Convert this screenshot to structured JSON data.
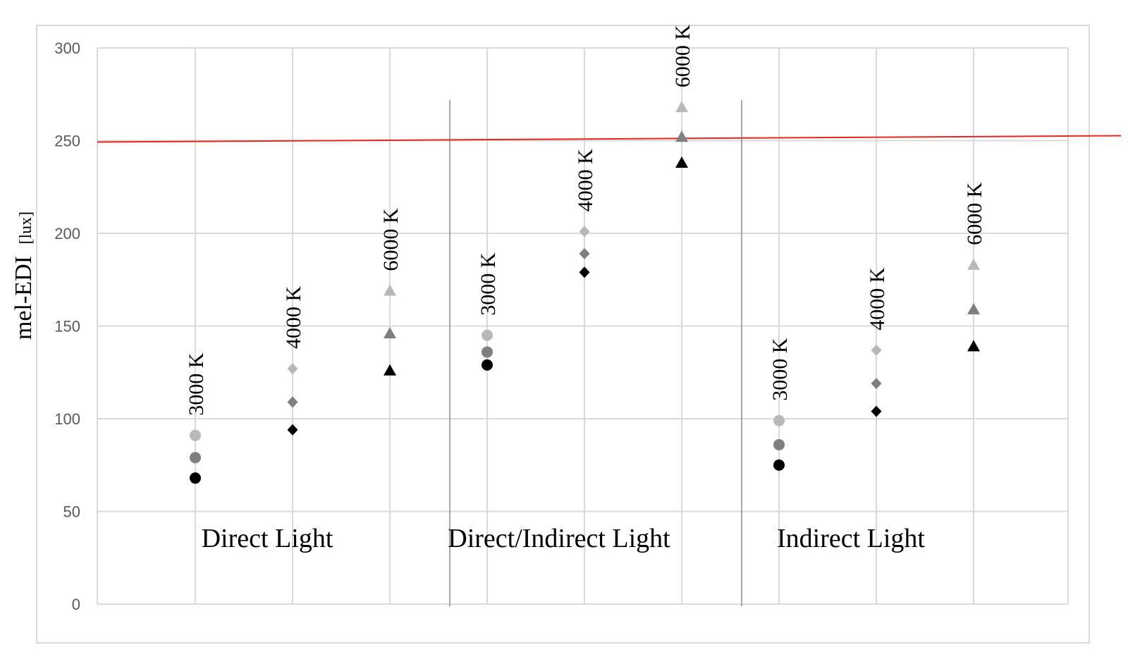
{
  "chart_data": {
    "type": "scatter",
    "ylabel": "mel-EDI",
    "ylabel_unit": "[lux]",
    "ylim": [
      0,
      300
    ],
    "yticks": [
      0,
      50,
      100,
      150,
      200,
      250,
      300
    ],
    "grid": true,
    "groups": [
      {
        "name": "Direct Light",
        "columns": [
          {
            "label": "3000 K",
            "marker": "circle",
            "values": [
              91,
              79,
              68
            ]
          },
          {
            "label": "4000 K",
            "marker": "diamond",
            "values": [
              127,
              109,
              94
            ]
          },
          {
            "label": "6000 K",
            "marker": "triangle",
            "values": [
              169,
              146,
              126
            ]
          }
        ]
      },
      {
        "name": "Direct/Indirect Light",
        "columns": [
          {
            "label": "3000 K",
            "marker": "circle",
            "values": [
              145,
              136,
              129
            ]
          },
          {
            "label": "4000 K",
            "marker": "diamond",
            "values": [
              201,
              189,
              179
            ]
          },
          {
            "label": "6000 K",
            "marker": "triangle",
            "values": [
              268,
              252,
              238
            ]
          }
        ]
      },
      {
        "name": "Indirect Light",
        "columns": [
          {
            "label": "3000 K",
            "marker": "circle",
            "values": [
              99,
              86,
              75
            ]
          },
          {
            "label": "4000 K",
            "marker": "diamond",
            "values": [
              137,
              119,
              104
            ]
          },
          {
            "label": "6000 K",
            "marker": "triangle",
            "values": [
              183,
              159,
              139
            ]
          }
        ]
      }
    ],
    "shade_colors": [
      "#b8b8b8",
      "#7f7f7f",
      "#000000"
    ],
    "threshold": {
      "value": 250,
      "color": "#e8261f"
    }
  }
}
